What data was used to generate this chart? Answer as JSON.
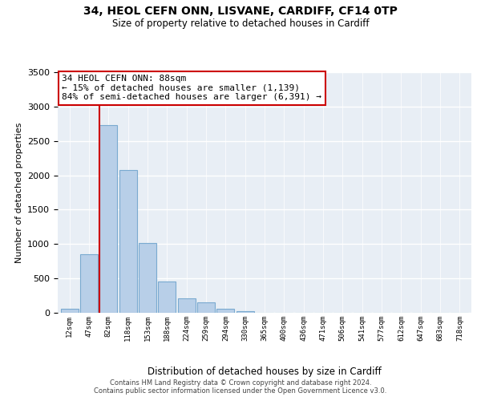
{
  "title1": "34, HEOL CEFN ONN, LISVANE, CARDIFF, CF14 0TP",
  "title2": "Size of property relative to detached houses in Cardiff",
  "xlabel": "Distribution of detached houses by size in Cardiff",
  "ylabel": "Number of detached properties",
  "bar_labels": [
    "12sqm",
    "47sqm",
    "82sqm",
    "118sqm",
    "153sqm",
    "188sqm",
    "224sqm",
    "259sqm",
    "294sqm",
    "330sqm",
    "365sqm",
    "400sqm",
    "436sqm",
    "471sqm",
    "506sqm",
    "541sqm",
    "577sqm",
    "612sqm",
    "647sqm",
    "683sqm",
    "718sqm"
  ],
  "bar_values": [
    55,
    850,
    2730,
    2080,
    1010,
    450,
    210,
    150,
    55,
    20,
    5,
    0,
    0,
    0,
    0,
    0,
    0,
    0,
    0,
    0,
    0
  ],
  "bar_color": "#b8cfe8",
  "bar_edge_color": "#7aaad0",
  "vline_color": "#cc0000",
  "annotation_title": "34 HEOL CEFN ONN: 88sqm",
  "annotation_line1": "← 15% of detached houses are smaller (1,139)",
  "annotation_line2": "84% of semi-detached houses are larger (6,391) →",
  "box_edge_color": "#cc0000",
  "ylim": [
    0,
    3500
  ],
  "yticks": [
    0,
    500,
    1000,
    1500,
    2000,
    2500,
    3000,
    3500
  ],
  "footnote1": "Contains HM Land Registry data © Crown copyright and database right 2024.",
  "footnote2": "Contains public sector information licensed under the Open Government Licence v3.0.",
  "bg_color": "#e8eef5"
}
